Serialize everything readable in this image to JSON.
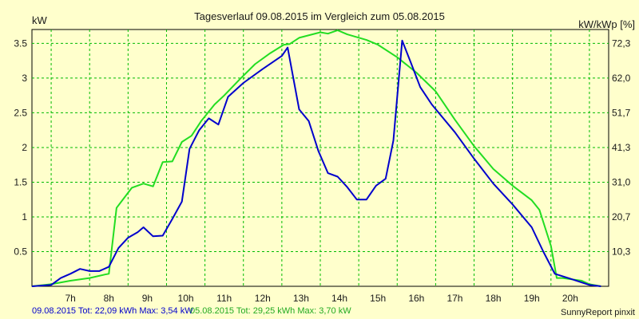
{
  "chart_data": {
    "type": "line",
    "title": "Tagesverlauf 09.08.2015 im Vergleich zum 05.08.2015",
    "ylabel_left": "kW",
    "ylabel_right": "kW/kWp [%]",
    "xlim": [
      6.0,
      21.0
    ],
    "ylim": [
      0,
      3.7
    ],
    "y_ticks": [
      "0.5",
      "1",
      "1.5",
      "2",
      "2.5",
      "3",
      "3.5"
    ],
    "y_right_ticks": [
      "10,3",
      "20,7",
      "31,0",
      "41,3",
      "51,7",
      "62,0",
      "72,3"
    ],
    "x_ticks": [
      "7h",
      "8h",
      "9h",
      "10h",
      "11h",
      "12h",
      "13h",
      "14h",
      "15h",
      "16h",
      "17h",
      "18h",
      "19h",
      "20h"
    ],
    "grid": true,
    "series": [
      {
        "name": "09.08.2015",
        "color": "#0000cc",
        "points": [
          [
            6.0,
            0.0
          ],
          [
            6.5,
            0.02
          ],
          [
            6.75,
            0.12
          ],
          [
            7.0,
            0.18
          ],
          [
            7.25,
            0.25
          ],
          [
            7.5,
            0.22
          ],
          [
            7.75,
            0.22
          ],
          [
            8.0,
            0.28
          ],
          [
            8.25,
            0.55
          ],
          [
            8.5,
            0.7
          ],
          [
            8.75,
            0.78
          ],
          [
            8.9,
            0.85
          ],
          [
            9.15,
            0.72
          ],
          [
            9.4,
            0.73
          ],
          [
            9.65,
            0.97
          ],
          [
            9.9,
            1.22
          ],
          [
            10.1,
            1.98
          ],
          [
            10.35,
            2.25
          ],
          [
            10.6,
            2.42
          ],
          [
            10.85,
            2.33
          ],
          [
            11.1,
            2.73
          ],
          [
            11.5,
            2.93
          ],
          [
            12.0,
            3.13
          ],
          [
            12.5,
            3.32
          ],
          [
            12.65,
            3.44
          ],
          [
            12.95,
            2.55
          ],
          [
            13.2,
            2.38
          ],
          [
            13.45,
            1.95
          ],
          [
            13.7,
            1.63
          ],
          [
            13.95,
            1.58
          ],
          [
            14.2,
            1.43
          ],
          [
            14.45,
            1.25
          ],
          [
            14.7,
            1.25
          ],
          [
            14.95,
            1.45
          ],
          [
            15.2,
            1.55
          ],
          [
            15.4,
            2.1
          ],
          [
            15.63,
            3.54
          ],
          [
            15.85,
            3.23
          ],
          [
            16.1,
            2.87
          ],
          [
            16.4,
            2.62
          ],
          [
            17.0,
            2.22
          ],
          [
            17.5,
            1.84
          ],
          [
            18.0,
            1.48
          ],
          [
            18.5,
            1.18
          ],
          [
            19.0,
            0.85
          ],
          [
            19.3,
            0.5
          ],
          [
            19.6,
            0.18
          ],
          [
            20.0,
            0.11
          ],
          [
            20.5,
            0.02
          ],
          [
            20.8,
            0.0
          ]
        ]
      },
      {
        "name": "05.08.2015",
        "color": "#22dd22",
        "points": [
          [
            6.0,
            0.0
          ],
          [
            6.5,
            0.03
          ],
          [
            7.0,
            0.08
          ],
          [
            7.5,
            0.12
          ],
          [
            7.9,
            0.17
          ],
          [
            8.0,
            0.18
          ],
          [
            8.2,
            1.13
          ],
          [
            8.6,
            1.42
          ],
          [
            8.9,
            1.48
          ],
          [
            9.15,
            1.44
          ],
          [
            9.4,
            1.79
          ],
          [
            9.65,
            1.8
          ],
          [
            9.9,
            2.08
          ],
          [
            10.15,
            2.17
          ],
          [
            10.4,
            2.38
          ],
          [
            10.75,
            2.62
          ],
          [
            11.0,
            2.75
          ],
          [
            11.4,
            2.98
          ],
          [
            11.8,
            3.2
          ],
          [
            12.2,
            3.36
          ],
          [
            12.55,
            3.48
          ],
          [
            12.7,
            3.49
          ],
          [
            12.95,
            3.58
          ],
          [
            13.5,
            3.66
          ],
          [
            13.7,
            3.64
          ],
          [
            13.95,
            3.69
          ],
          [
            14.2,
            3.63
          ],
          [
            14.7,
            3.55
          ],
          [
            15.0,
            3.48
          ],
          [
            15.5,
            3.3
          ],
          [
            16.0,
            3.08
          ],
          [
            16.5,
            2.81
          ],
          [
            17.0,
            2.4
          ],
          [
            17.5,
            2.02
          ],
          [
            18.0,
            1.69
          ],
          [
            18.5,
            1.45
          ],
          [
            19.0,
            1.24
          ],
          [
            19.2,
            1.1
          ],
          [
            19.5,
            0.58
          ],
          [
            19.65,
            0.12
          ],
          [
            19.8,
            0.12
          ],
          [
            20.3,
            0.08
          ],
          [
            20.5,
            0.03
          ],
          [
            20.8,
            0.0
          ]
        ]
      }
    ]
  },
  "footer": {
    "series1_summary": "09.08.2015 Tot: 22,09 kWh Max: 3,54 kW",
    "series2_summary": "05.08.2015 Tot: 29,25 kWh Max: 3,70 kW",
    "credit": "SunnyReport pinxit"
  }
}
